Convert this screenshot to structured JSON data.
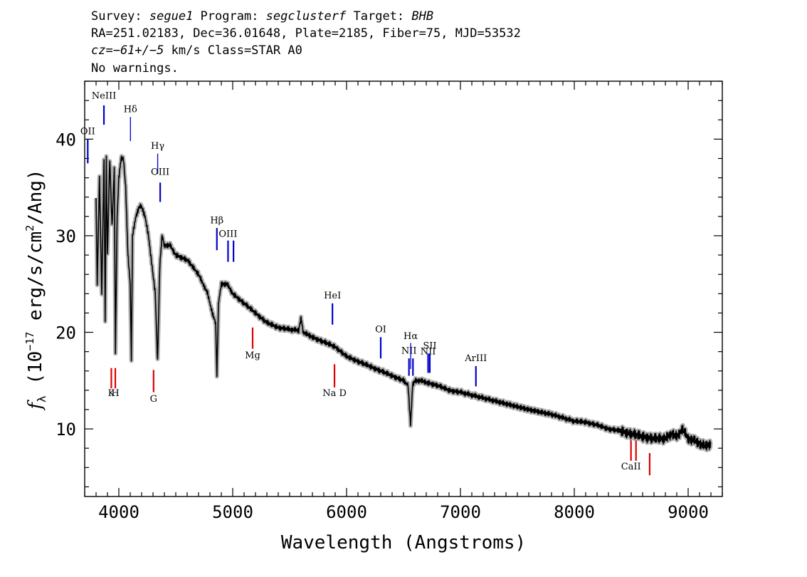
{
  "header": {
    "line1": {
      "survey_label": "Survey: ",
      "survey": "segue1",
      "program_label": " Program: ",
      "program": "segclusterf",
      "target_label": " Target: ",
      "target": "BHB"
    },
    "line2": "RA=251.02183, Dec=36.01648, Plate=2185, Fiber=75, MJD=53532",
    "line3": {
      "cz": "cz=−61+/−5",
      "rest": " km/s Class=STAR A0"
    },
    "line4": "No warnings."
  },
  "chart_data": {
    "type": "line",
    "xlabel": "Wavelength (Angstroms)",
    "ylabel_symbol": "f",
    "ylabel_sub": "λ",
    "ylabel_pre": " (10",
    "ylabel_exp": "−17",
    "ylabel_mid": " erg/s/cm",
    "ylabel_exp2": "2",
    "ylabel_post": "/Ang)",
    "xlim": [
      3700,
      9300
    ],
    "ylim": [
      3,
      46
    ],
    "xticks": [
      4000,
      5000,
      6000,
      7000,
      8000,
      9000
    ],
    "yticks": [
      10,
      20,
      30,
      40
    ],
    "series": [
      {
        "color": "#000000",
        "error_color": "#b0b0b0",
        "x": [
          3800,
          3810,
          3830,
          3850,
          3870,
          3880,
          3890,
          3900,
          3920,
          3940,
          3960,
          3970,
          3985,
          4000,
          4020,
          4040,
          4060,
          4080,
          4100,
          4110,
          4120,
          4150,
          4180,
          4200,
          4230,
          4260,
          4290,
          4320,
          4340,
          4360,
          4380,
          4400,
          4450,
          4500,
          4600,
          4700,
          4780,
          4820,
          4850,
          4861,
          4875,
          4900,
          4950,
          5000,
          5100,
          5200,
          5300,
          5400,
          5500,
          5580,
          5600,
          5620,
          5700,
          5800,
          5900,
          6000,
          6100,
          6200,
          6300,
          6400,
          6500,
          6540,
          6562,
          6580,
          6600,
          6650,
          6700,
          6800,
          6900,
          7000,
          7200,
          7400,
          7600,
          7800,
          8000,
          8100,
          8200,
          8300,
          8400,
          8500,
          8600,
          8700,
          8800,
          8850,
          8900,
          8950,
          9000,
          9050,
          9100,
          9150,
          9200
        ],
        "y": [
          34,
          25,
          36,
          24,
          38,
          21,
          38,
          28,
          38,
          31,
          37,
          18,
          32,
          36,
          38,
          38,
          35,
          28,
          25,
          17,
          30,
          32,
          33,
          33,
          32,
          30,
          27,
          24,
          17,
          27,
          30,
          29,
          29,
          28,
          27.5,
          26,
          24,
          22,
          21,
          15.5,
          23,
          25,
          25,
          24,
          23,
          22,
          21,
          20.5,
          20.3,
          20.2,
          21.5,
          20,
          19.5,
          19,
          18.5,
          17.5,
          17,
          16.5,
          16,
          15.5,
          15,
          14.5,
          10.5,
          14.5,
          15,
          15,
          14.8,
          14.5,
          14,
          13.8,
          13.2,
          12.6,
          12,
          11.5,
          10.8,
          10.7,
          10.4,
          10,
          9.8,
          9.5,
          9.2,
          9,
          9,
          9.5,
          9.2,
          10,
          9,
          8.8,
          8.5,
          8.2,
          8.5
        ]
      }
    ],
    "lines_blue": [
      {
        "label": "OII",
        "x": 3727,
        "y0": 37.5,
        "y1": 40,
        "label_y": 40.5
      },
      {
        "label": "NeIII",
        "x": 3869,
        "y0": 41.5,
        "y1": 43.5,
        "label_y": 44.2
      },
      {
        "label": "Hδ",
        "x": 4102,
        "y0": 39.8,
        "y1": 42.3,
        "label_y": 42.8,
        "thin": true
      },
      {
        "label": "Hγ",
        "x": 4341,
        "y0": 36.4,
        "y1": 38.5,
        "label_y": 39,
        "thin": true
      },
      {
        "label": "OIII",
        "x": 4363,
        "y0": 33.5,
        "y1": 35.5,
        "label_y": 36.3
      },
      {
        "label": "Hβ",
        "x": 4861,
        "y0": 28.5,
        "y1": 30.8,
        "label_y": 31.3
      },
      {
        "label": "OIII",
        "x": 4959,
        "y0": 27.3,
        "y1": 29.5,
        "label_y": 29.9
      },
      {
        "label": "",
        "x": 5007,
        "y0": 27.3,
        "y1": 29.5,
        "label_y": 0
      },
      {
        "label": "HeI",
        "x": 5876,
        "y0": 20.8,
        "y1": 23,
        "label_y": 23.5
      },
      {
        "label": "OI",
        "x": 6300,
        "y0": 17.3,
        "y1": 19.5,
        "label_y": 20
      },
      {
        "label": "NII",
        "x": 6548,
        "y0": 15.5,
        "y1": 17.3,
        "label_y": 17.8
      },
      {
        "label": "Hα",
        "x": 6563,
        "y0": 16.2,
        "y1": 18.9,
        "label_y": 19.3,
        "thin": true
      },
      {
        "label": "",
        "x": 6583,
        "y0": 15.5,
        "y1": 17.3,
        "label_y": 0
      },
      {
        "label": "NII",
        "x": 6716,
        "y0": 15.8,
        "y1": 17.8,
        "label_y": 17.7
      },
      {
        "label": "SII",
        "x": 6731,
        "y0": 15.8,
        "y1": 17.8,
        "label_y": 18.3
      },
      {
        "label": "ArIII",
        "x": 7136,
        "y0": 14.4,
        "y1": 16.5,
        "label_y": 17
      }
    ],
    "lines_red": [
      {
        "label": "K",
        "x": 3934,
        "y0": 14.2,
        "y1": 16.3,
        "label_y": 13.4
      },
      {
        "label": "H",
        "x": 3969,
        "y0": 14.2,
        "y1": 16.3,
        "label_y": 13.4
      },
      {
        "label": "G",
        "x": 4305,
        "y0": 13.8,
        "y1": 16.1,
        "label_y": 12.8
      },
      {
        "label": "Mg",
        "x": 5175,
        "y0": 18.3,
        "y1": 20.5,
        "label_y": 17.3
      },
      {
        "label": "Na D",
        "x": 5894,
        "y0": 14.3,
        "y1": 16.7,
        "label_y": 13.4
      },
      {
        "label": "CaII",
        "x": 8498,
        "y0": 6.7,
        "y1": 8.8,
        "label_y": 5.8
      },
      {
        "label": "",
        "x": 8542,
        "y0": 6.7,
        "y1": 8.8,
        "label_y": 0
      },
      {
        "label": "",
        "x": 8662,
        "y0": 5.2,
        "y1": 7.5,
        "label_y": 0
      }
    ]
  }
}
